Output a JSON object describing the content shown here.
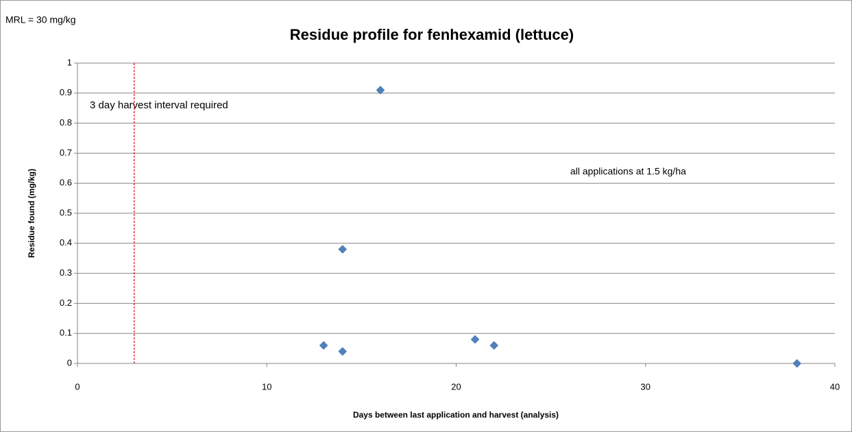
{
  "chart_data": {
    "type": "scatter",
    "title": "Residue profile for fenhexamid (lettuce)",
    "xlabel": "Days between last application  and harvest (analysis)",
    "ylabel": "Residue found (mg/kg)",
    "annotations": [
      "MRL = 30 mg/kg",
      "3 day harvest interval required",
      "all applications at 1.5 kg/ha"
    ],
    "vline": 3,
    "vline_color": "#e00000",
    "series": [
      {
        "name": "Residue",
        "color": "#4f81bd",
        "x": [
          13,
          14,
          14,
          16,
          21,
          22,
          38
        ],
        "values": [
          0.06,
          0.04,
          0.38,
          0.91,
          0.08,
          0.06,
          0
        ]
      }
    ],
    "xlim": [
      0,
      40
    ],
    "xticks": [
      0,
      10,
      20,
      30,
      40
    ],
    "ylim": [
      0,
      1
    ],
    "yticks": [
      0,
      0.1,
      0.2,
      0.3,
      0.4,
      0.5,
      0.6,
      0.7,
      0.8,
      0.9,
      1
    ],
    "grid": true
  }
}
